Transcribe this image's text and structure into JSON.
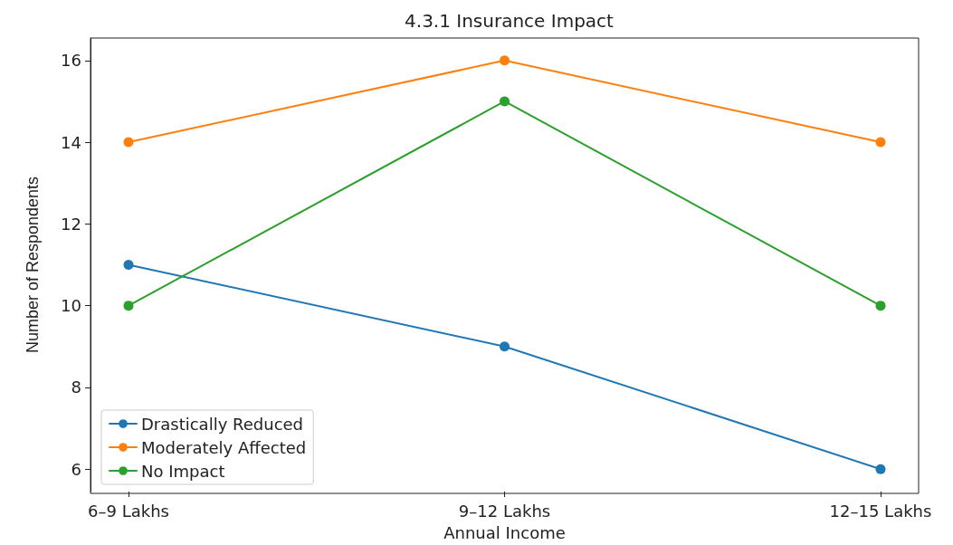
{
  "chart_data": {
    "type": "line",
    "title": "4.3.1 Insurance Impact",
    "xlabel": "Annual Income",
    "ylabel": "Number of Respondents",
    "categories": [
      "6–9 Lakhs",
      "9–12 Lakhs",
      "12–15 Lakhs"
    ],
    "series": [
      {
        "name": "Drastically Reduced",
        "color": "#1f77b4",
        "values": [
          11,
          9,
          6
        ]
      },
      {
        "name": "Moderately Affected",
        "color": "#ff7f0e",
        "values": [
          14,
          16,
          14
        ]
      },
      {
        "name": "No Impact",
        "color": "#2ca02c",
        "values": [
          10,
          15,
          10
        ]
      }
    ],
    "ylim": [
      5.45,
      16.55
    ],
    "yticks": [
      6,
      8,
      10,
      12,
      14,
      16
    ],
    "legend": "bottom left",
    "marker": "circle",
    "line_style": "solid",
    "grid": false
  }
}
